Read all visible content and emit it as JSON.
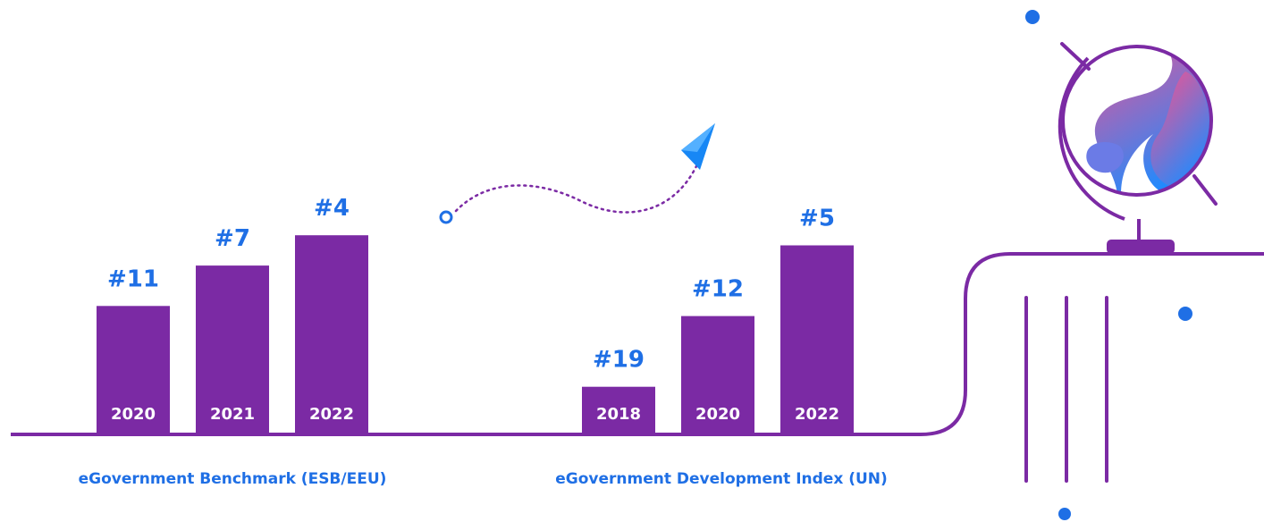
{
  "colors": {
    "bar": "#7B2AA4",
    "rank": "#1F6FE5",
    "line": "#7B2AA4",
    "dot": "#1F6FE5",
    "plane": "#1787F5",
    "globe_gradient_top": "#FF4F8A",
    "globe_gradient_bottom": "#1E8BFF",
    "globe_island": "#6B7BE6"
  },
  "icons": {
    "plane": "paper-plane-icon",
    "globe": "globe-icon"
  },
  "chart_data": [
    {
      "type": "bar",
      "caption": "eGovernment Benchmark (ESB/EEU)",
      "categories": [
        "2020",
        "2021",
        "2022"
      ],
      "ranks": [
        11,
        7,
        4
      ],
      "rank_labels": [
        "#11",
        "#7",
        "#4"
      ]
    },
    {
      "type": "bar",
      "caption": "eGovernment Development Index (UN)",
      "categories": [
        "2018",
        "2020",
        "2022"
      ],
      "ranks": [
        19,
        12,
        5
      ],
      "rank_labels": [
        "#19",
        "#12",
        "#5"
      ]
    }
  ]
}
